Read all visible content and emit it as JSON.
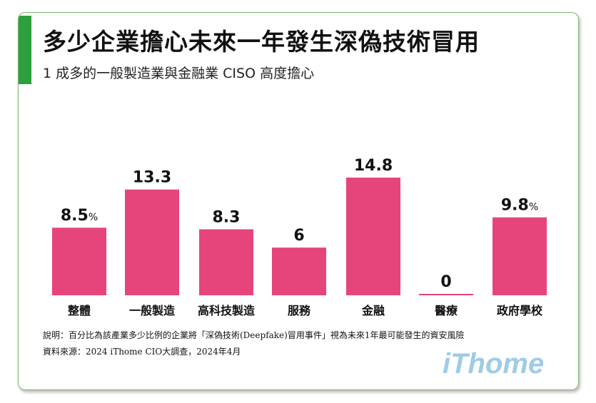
{
  "title": "多少企業擔心未來一年發生深偽技術冒用",
  "subtitle": "1 成多的一般製造業與金融業 CISO 高度擔心",
  "chart_data": {
    "type": "bar",
    "categories": [
      "整體",
      "一般製造",
      "高科技製造",
      "服務",
      "金融",
      "醫療",
      "政府學校"
    ],
    "values": [
      8.5,
      13.3,
      8.3,
      6,
      14.8,
      0,
      9.8
    ],
    "value_labels": [
      "8.5",
      "13.3",
      "8.3",
      "6",
      "14.8",
      "0",
      "9.8"
    ],
    "unit_labels": [
      "%",
      "",
      "",
      "",
      "",
      "",
      "%"
    ],
    "ylim": [
      0,
      14.8
    ],
    "grid": false,
    "bar_color": "#e6457b"
  },
  "notes": {
    "line1": "說明：百分比為該產業多少比例的企業將「深偽技術(Deepfake)冒用事件」視為未來1年最可能發生的資安風險",
    "line2": "資料來源：2024 iThome CIO大調查，2024年4月"
  },
  "logo": "iThome"
}
